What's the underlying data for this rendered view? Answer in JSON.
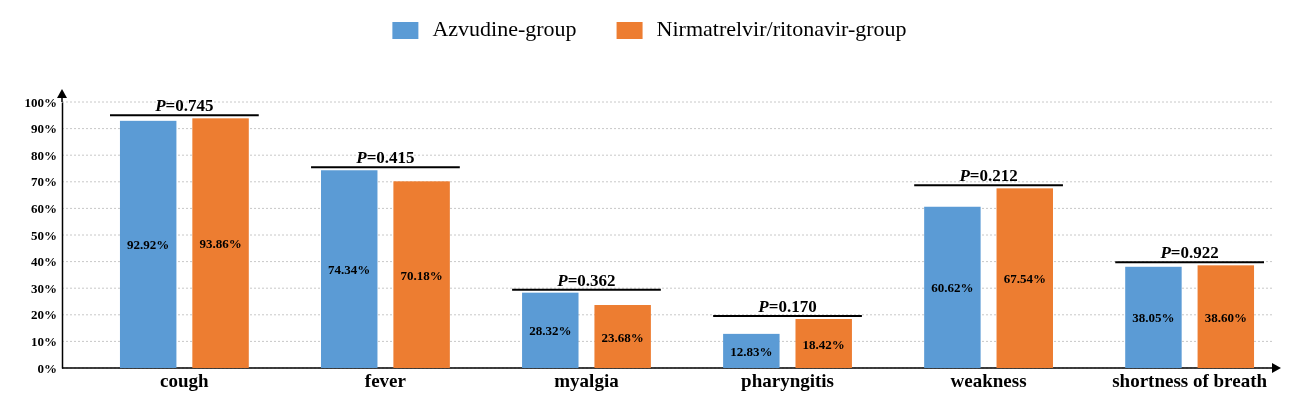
{
  "chart_data": {
    "type": "bar",
    "categories": [
      "cough",
      "fever",
      "myalgia",
      "pharyngitis",
      "weakness",
      "shortness of breath"
    ],
    "series": [
      {
        "name": "Azvudine-group",
        "color": "#5b9bd5",
        "values": [
          92.92,
          74.34,
          28.32,
          12.83,
          60.62,
          38.05
        ],
        "value_labels": [
          "92.92%",
          "74.34%",
          "28.32%",
          "12.83%",
          "60.62%",
          "38.05%"
        ]
      },
      {
        "name": "Nirmatrelvir/ritonavir-group",
        "color": "#ed7d31",
        "values": [
          93.86,
          70.18,
          23.68,
          18.42,
          67.54,
          38.6
        ],
        "value_labels": [
          "93.86%",
          "70.18%",
          "23.68%",
          "18.42%",
          "67.54%",
          "38.60%"
        ]
      }
    ],
    "ylim": [
      0,
      100
    ],
    "yticks": [
      {
        "value": 0,
        "label": "0%"
      },
      {
        "value": 10,
        "label": "10%"
      },
      {
        "value": 20,
        "label": "20%"
      },
      {
        "value": 30,
        "label": "30%"
      },
      {
        "value": 40,
        "label": "40%"
      },
      {
        "value": 50,
        "label": "50%"
      },
      {
        "value": 60,
        "label": "60%"
      },
      {
        "value": 70,
        "label": "70%"
      },
      {
        "value": 80,
        "label": "80%"
      },
      {
        "value": 90,
        "label": "90%"
      },
      {
        "value": 100,
        "label": "100%"
      }
    ],
    "grid": "y",
    "legend": "top",
    "annotations": [
      "P=0.745",
      "P=0.415",
      "P=0.362",
      "P=0.170",
      "P=0.212",
      "P=0.922"
    ]
  }
}
